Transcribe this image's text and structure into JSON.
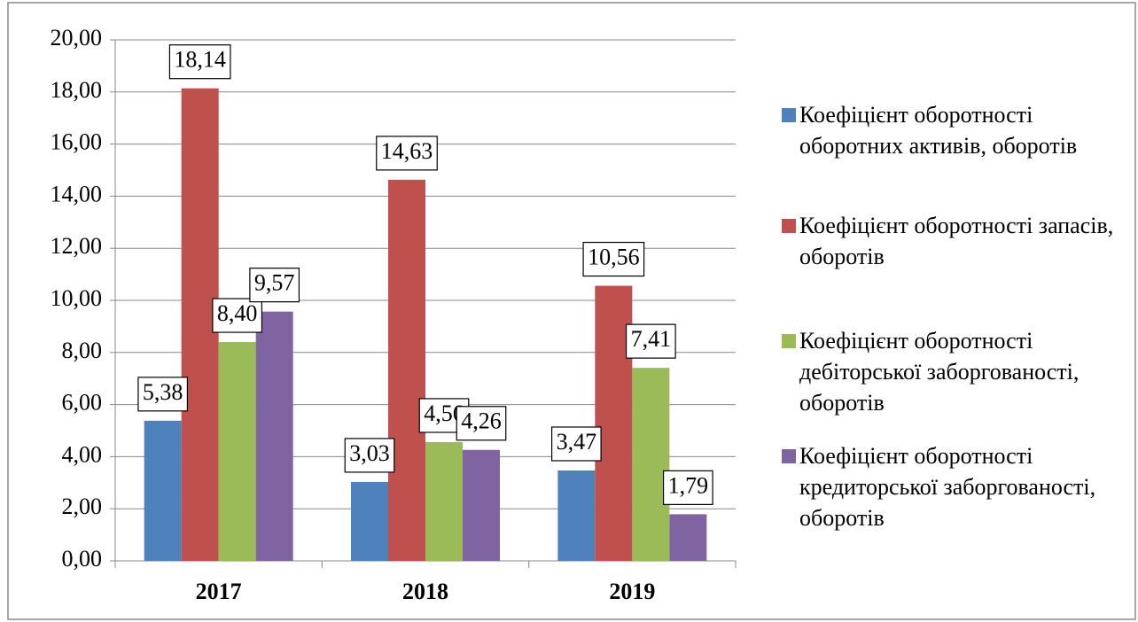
{
  "chart_data": {
    "type": "bar",
    "categories": [
      "2017",
      "2018",
      "2019"
    ],
    "series": [
      {
        "name": "Коефіцієнт оборотності оборотних активів, оборотів",
        "color": "#4f81bd",
        "values": [
          5.38,
          3.03,
          3.47
        ],
        "value_labels": [
          "5,38",
          "3,03",
          "3,47"
        ]
      },
      {
        "name": "Коефіцієнт оборотності запасів, оборотів",
        "color": "#c0504d",
        "values": [
          18.14,
          14.63,
          10.56
        ],
        "value_labels": [
          "18,14",
          "14,63",
          "10,56"
        ]
      },
      {
        "name": "Коефіцієнт оборотності дебіторської заборгованості, оборотів",
        "color": "#9bbb59",
        "values": [
          8.4,
          4.56,
          7.41
        ],
        "value_labels": [
          "8,40",
          "4,56",
          "7,41"
        ]
      },
      {
        "name": "Коефіцієнт оборотності кредиторської заборгованості, оборотів",
        "color": "#8064a2",
        "values": [
          9.57,
          4.26,
          1.79
        ],
        "value_labels": [
          "9,57",
          "4,26",
          "1,79"
        ]
      }
    ],
    "ylim": [
      0,
      20
    ],
    "yticks": [
      {
        "value": 0,
        "label": "0,00"
      },
      {
        "value": 2,
        "label": "2,00"
      },
      {
        "value": 4,
        "label": "4,00"
      },
      {
        "value": 6,
        "label": "6,00"
      },
      {
        "value": 8,
        "label": "8,00"
      },
      {
        "value": 10,
        "label": "10,00"
      },
      {
        "value": 12,
        "label": "12,00"
      },
      {
        "value": 14,
        "label": "14,00"
      },
      {
        "value": 16,
        "label": "16,00"
      },
      {
        "value": 18,
        "label": "18,00"
      },
      {
        "value": 20,
        "label": "20,00"
      }
    ],
    "grid": true,
    "legend": "right"
  }
}
